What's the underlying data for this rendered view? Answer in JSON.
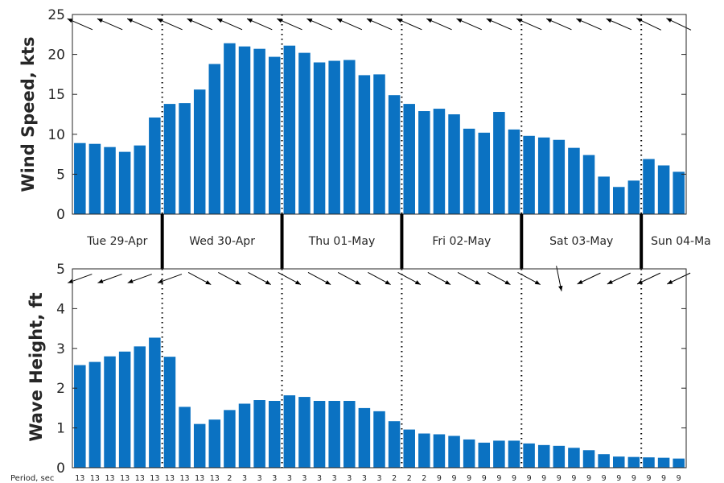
{
  "colors": {
    "bar": "#0b72c2",
    "axis": "#262626",
    "arrow": "#000000",
    "background": "#ffffff"
  },
  "chart_data": [
    {
      "type": "bar",
      "title": "",
      "ylabel": "Wind Speed, kts",
      "ylim": [
        0,
        25
      ],
      "yticks": [
        0,
        5,
        10,
        15,
        20,
        25
      ],
      "grid": false,
      "direction_arrows": true,
      "values": [
        8.9,
        8.8,
        8.4,
        7.8,
        8.6,
        12.1,
        13.8,
        13.9,
        15.6,
        18.8,
        21.4,
        21.0,
        20.7,
        19.7,
        21.1,
        20.2,
        19.0,
        19.2,
        19.3,
        17.4,
        17.5,
        14.9,
        13.8,
        12.9,
        13.2,
        12.5,
        10.7,
        10.2,
        12.8,
        10.6,
        9.8,
        9.6,
        9.3,
        8.3,
        7.4,
        4.7,
        3.4,
        4.2,
        6.9,
        6.1,
        5.3
      ]
    },
    {
      "type": "bar",
      "title": "",
      "ylabel": "Wave Height, ft",
      "ylim": [
        0,
        5
      ],
      "yticks": [
        0,
        1,
        2,
        3,
        4,
        5
      ],
      "grid": false,
      "direction_arrows": true,
      "values": [
        2.58,
        2.66,
        2.8,
        2.92,
        3.05,
        3.27,
        2.79,
        1.53,
        1.1,
        1.21,
        1.45,
        1.61,
        1.7,
        1.68,
        1.82,
        1.78,
        1.68,
        1.68,
        1.68,
        1.5,
        1.42,
        1.17,
        0.96,
        0.86,
        0.84,
        0.8,
        0.71,
        0.63,
        0.68,
        0.68,
        0.61,
        0.57,
        0.55,
        0.5,
        0.44,
        0.34,
        0.28,
        0.27,
        0.26,
        0.25,
        0.23
      ],
      "period_label": "Period, sec",
      "periods": [
        "13",
        "13",
        "13",
        "13",
        "13",
        "13",
        "13",
        "13",
        "13",
        "13",
        "2",
        "3",
        "3",
        "3",
        "3",
        "3",
        "3",
        "3",
        "3",
        "3",
        "3",
        "2",
        "2",
        "2",
        "9",
        "9",
        "9",
        "9",
        "9",
        "9",
        "9",
        "9",
        "9",
        "9",
        "9",
        "9",
        "9",
        "9",
        "9",
        "9",
        "9"
      ]
    }
  ],
  "days": [
    "Tue 29-Apr",
    "Wed 30-Apr",
    "Thu 01-May",
    "Fri 02-May",
    "Sat 03-May",
    "Sun 04-Ma"
  ]
}
